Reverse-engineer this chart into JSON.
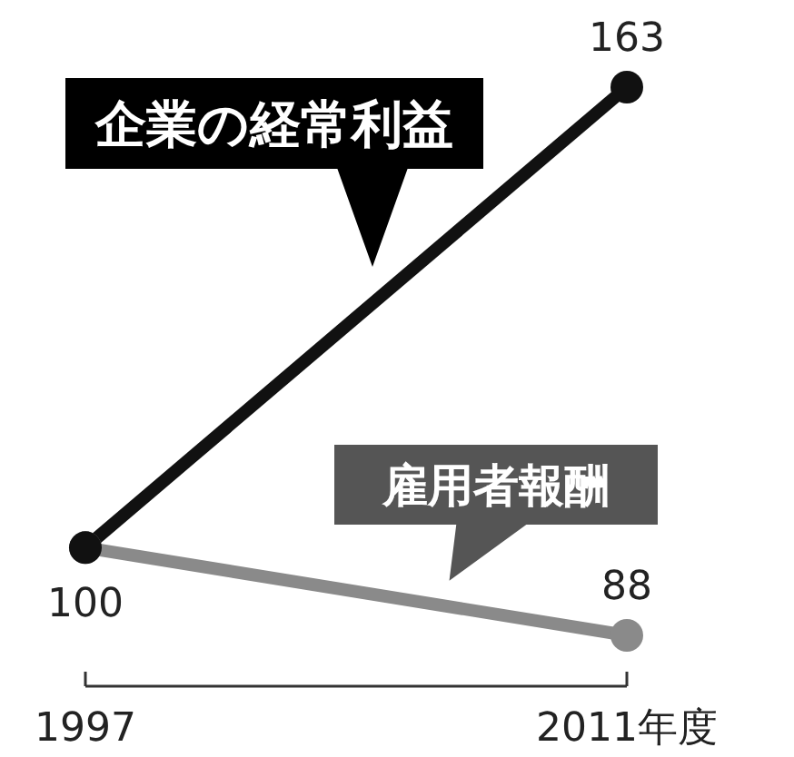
{
  "chart_data": {
    "type": "line",
    "x": [
      1997,
      2011
    ],
    "xlim": [
      1997,
      2011
    ],
    "xticks": [
      {
        "value": 1997,
        "label": "1997"
      },
      {
        "value": 2011,
        "label": "2011年度"
      }
    ],
    "series": [
      {
        "name": "企業の経常利益",
        "color": "#111111",
        "values": [
          100,
          163
        ],
        "value_labels": [
          null,
          "163"
        ]
      },
      {
        "name": "雇用者報酬",
        "color": "#8a8a8a",
        "values": [
          100,
          88
        ],
        "value_labels": [
          "100",
          "88"
        ]
      }
    ],
    "marker": "circle"
  }
}
